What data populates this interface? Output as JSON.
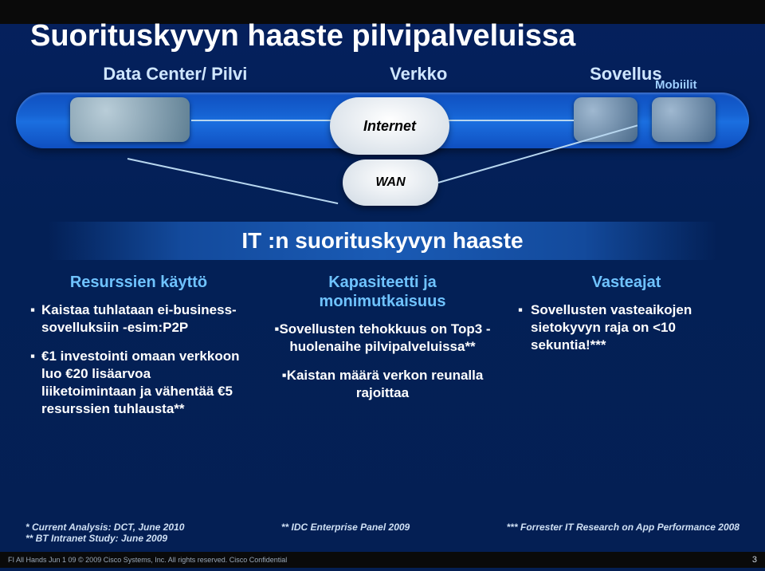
{
  "title": "Suorituskyvyn haaste pilvipalveluissa",
  "topo": {
    "labels": {
      "dc": "Data Center/ Pilvi",
      "net": "Verkko",
      "app": "Sovellus"
    },
    "internet": "Internet",
    "wan": "WAN",
    "mobile": "Mobiilit"
  },
  "subheading": "IT :n suorituskyvyn haaste",
  "columns": {
    "left": {
      "title": "Resurssien käyttö",
      "bullets": [
        "Kaistaa tuhlataan ei-business-sovelluksiin -esim:P2P",
        "€1 investointi omaan verkkoon luo €20 lisäarvoa liiketoimintaan ja vähentää €5 resurssien tuhlausta**"
      ]
    },
    "middle": {
      "title": "Kapasiteetti ja monimutkaisuus",
      "bullets": [
        "Sovellusten tehokkuus on Top3 -huolenaihe pilvipalveluissa**",
        "Kaistan määrä verkon reunalla rajoittaa"
      ]
    },
    "right": {
      "title": "Vasteajat",
      "bullets": [
        "Sovellusten vasteaikojen sietokyvyn raja on  <10 sekuntia!***"
      ]
    }
  },
  "footnotes": {
    "left1": "* Current Analysis: DCT, June 2010",
    "left2": "** BT Intranet Study: June 2009",
    "center": "** IDC Enterprise Panel 2009",
    "right": "*** Forrester  IT Research on App Performance 2008"
  },
  "footer": {
    "left": "FI All Hands Jun 1 09    © 2009 Cisco Systems, Inc. All rights reserved.   Cisco Confidential",
    "page": "3"
  },
  "colors": {
    "bg_top": "#05205d",
    "accent_blue": "#6fc3ff",
    "band": "#1663d3"
  }
}
